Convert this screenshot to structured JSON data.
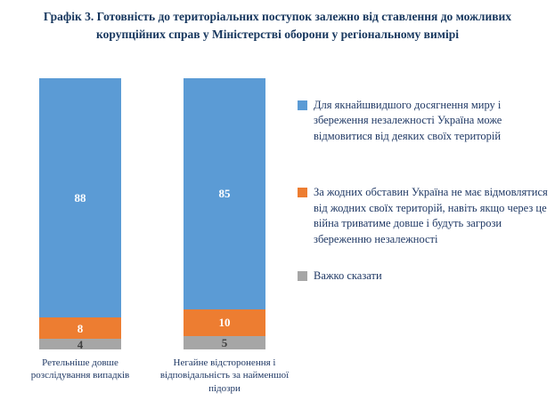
{
  "title": "Графік 3. Готовність до територіальних поступок залежно від ставлення до можливих корупційних справ у Міністерстві оборони у регіональному вимірі",
  "chart_data": {
    "type": "bar",
    "subtype": "stacked-100-percent-column",
    "categories": [
      "Ретельніше довше розслідування випадків",
      "Негайне відсторонення і відповідальність за найменшої підозри"
    ],
    "series": [
      {
        "name": "Для якнайшвидшого досягнення миру і збереження незалежності Україна може відмовитися від деяких своїх територій",
        "color": "#5B9BD5",
        "label_color": "#ffffff",
        "values": [
          88,
          85
        ]
      },
      {
        "name": "За жодних обставин Україна не має відмовлятися від жодних своїх територій, навіть якщо через це війна триватиме довше і будуть загрози збереженню незалежності",
        "color": "#ED7D31",
        "label_color": "#ffffff",
        "values": [
          8,
          10
        ]
      },
      {
        "name": "Важко сказати",
        "color": "#A6A6A6",
        "label_color": "#404040",
        "values": [
          4,
          5
        ]
      }
    ],
    "ylim": [
      0,
      100
    ],
    "grid": false,
    "legend_position": "right",
    "data_labels": true
  },
  "text_colors": {
    "title": "#17375E",
    "labels": "#1F3864"
  }
}
